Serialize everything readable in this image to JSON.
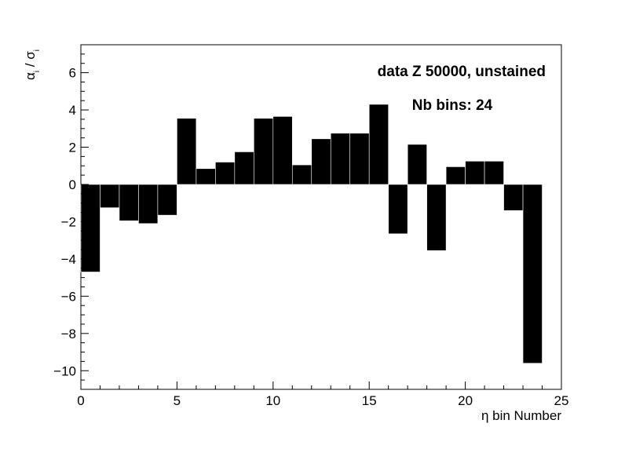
{
  "chart_data": {
    "type": "bar",
    "title": "",
    "xlabel": "η bin Number",
    "ylabel": {
      "base": "α",
      "base_sub": "i",
      "sep": " / ",
      "den": "σ",
      "den_sub": "i"
    },
    "xlim": [
      0,
      25
    ],
    "ylim": [
      -11,
      7.5
    ],
    "x_ticks": [
      0,
      5,
      10,
      15,
      20,
      25
    ],
    "y_ticks": [
      -10,
      -8,
      -6,
      -4,
      -2,
      0,
      2,
      4,
      6
    ],
    "bar_color": "#000000",
    "grid": false,
    "legend": "none",
    "bins": [
      0,
      1,
      2,
      3,
      4,
      5,
      6,
      7,
      8,
      9,
      10,
      11,
      12,
      13,
      14,
      15,
      16,
      17,
      18,
      19,
      20,
      21,
      22,
      23
    ],
    "values": [
      -4.7,
      -1.25,
      -1.95,
      -2.1,
      -1.65,
      3.55,
      0.85,
      1.2,
      1.75,
      3.55,
      3.65,
      1.05,
      2.45,
      2.75,
      2.75,
      4.3,
      -2.65,
      2.15,
      -3.55,
      0.95,
      1.25,
      1.25,
      -1.4,
      -9.6
    ],
    "annotations": [
      "data Z 50000, unstained",
      "Nb bins: 24"
    ]
  }
}
